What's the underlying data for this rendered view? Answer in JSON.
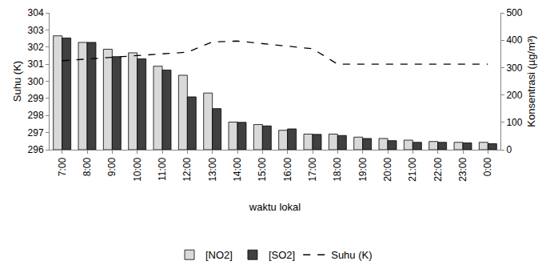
{
  "chart_data": {
    "type": "bar",
    "x_label": "waktu lokal",
    "y_label": "Suhu (K)",
    "y2_label": "Konsentrasi (µg/m³)",
    "categories": [
      "7:00",
      "8:00",
      "9:00",
      "10:00",
      "11:00",
      "12:00",
      "13:00",
      "14:00",
      "15:00",
      "16:00",
      "17:00",
      "18:00",
      "19:00",
      "20:00",
      "21:00",
      "22:00",
      "23:00",
      "0:00"
    ],
    "series": [
      {
        "name": "[NO2]",
        "type": "bar",
        "axis": "y2",
        "color": "#d9d9d9",
        "values": [
          416,
          392,
          367,
          354,
          305,
          272,
          207,
          101,
          92,
          71,
          57,
          57,
          46,
          41,
          35,
          30,
          27,
          27
        ]
      },
      {
        "name": "[SO2]",
        "type": "bar",
        "axis": "y2",
        "color": "#404040",
        "values": [
          408,
          392,
          340,
          332,
          291,
          193,
          150,
          100,
          87,
          76,
          56,
          52,
          41,
          33,
          27,
          27,
          25,
          22
        ]
      },
      {
        "name": "Suhu (K)",
        "type": "line",
        "color": "#000000",
        "line_style": "dash",
        "values": [
          301.2,
          301.3,
          301.4,
          301.5,
          301.6,
          301.7,
          302.3,
          302.35,
          302.2,
          302.05,
          301.9,
          301.0,
          301.0,
          301.0,
          301.0,
          301.0,
          301.0,
          301.0
        ]
      }
    ],
    "ylim": [
      296,
      304
    ],
    "yticks": [
      296,
      297,
      298,
      299,
      300,
      301,
      302,
      303,
      304
    ],
    "y2lim": [
      0,
      500
    ],
    "y2ticks": [
      0,
      100,
      200,
      300,
      400,
      500
    ],
    "grid": false,
    "legend": "bottom"
  }
}
